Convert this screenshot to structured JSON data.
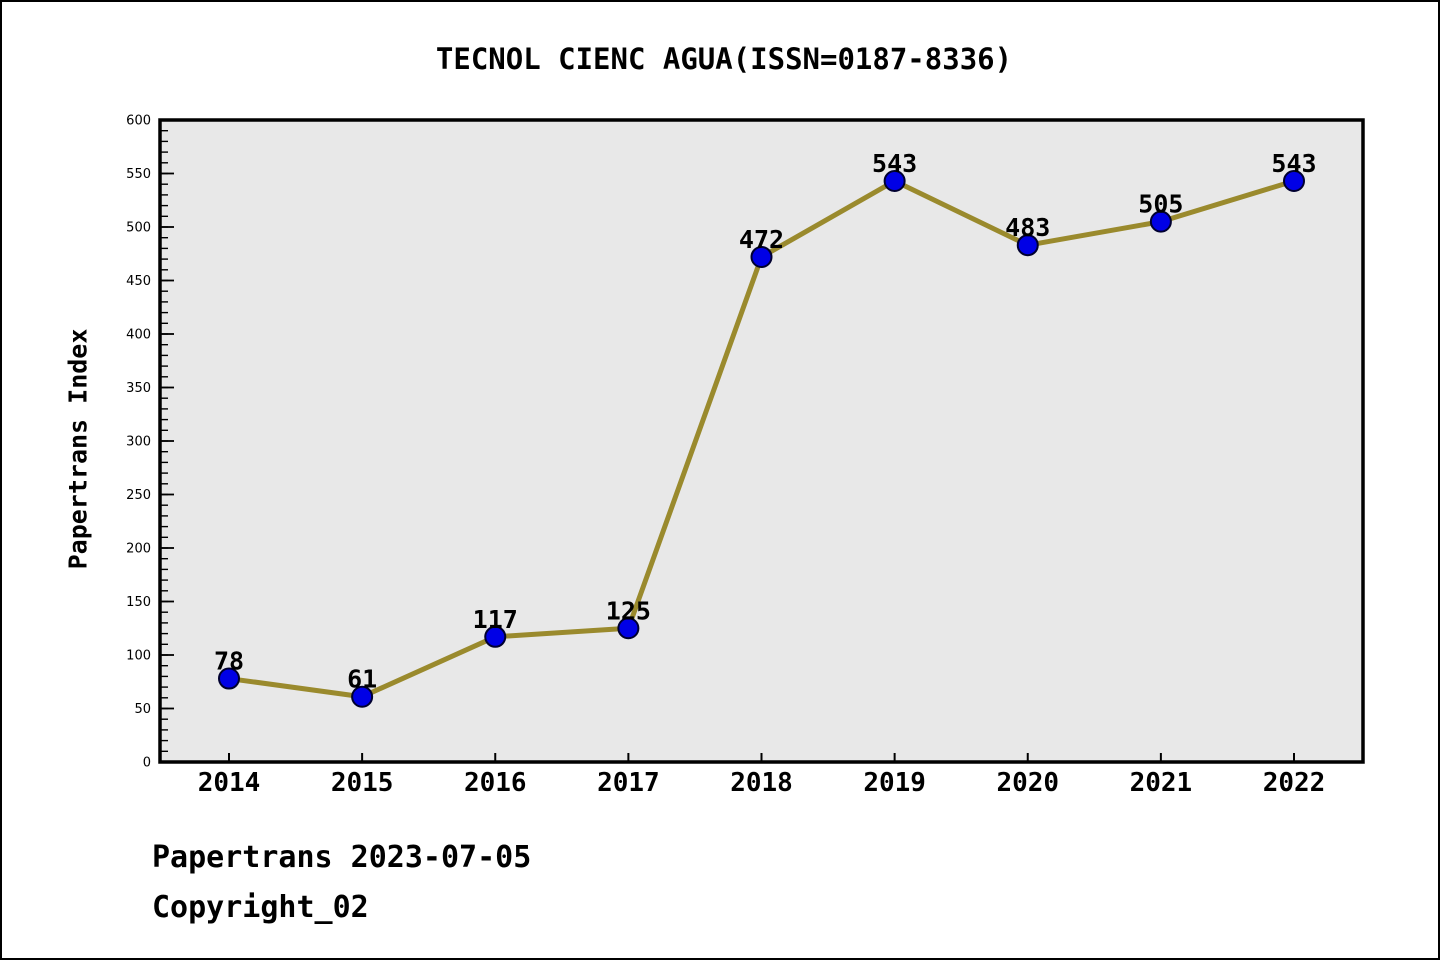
{
  "figure": {
    "footer_line1": "Papertrans 2023-07-05",
    "footer_line2": "Copyright_02"
  },
  "chart_data": {
    "type": "line",
    "title": "TECNOL CIENC AGUA(ISSN=0187-8336)",
    "categories": [
      "2014",
      "2015",
      "2016",
      "2017",
      "2018",
      "2019",
      "2020",
      "2021",
      "2022"
    ],
    "series": [
      {
        "name": "Papertrans Index",
        "values": [
          78,
          61,
          117,
          125,
          472,
          543,
          483,
          505,
          543
        ]
      }
    ],
    "point_labels": [
      "78",
      "61",
      "117",
      "125",
      "472",
      "543",
      "483",
      "505",
      "543"
    ],
    "xlabel": "",
    "ylabel": "Papertrans Index",
    "ylim": [
      0,
      600
    ],
    "yticks": [
      0,
      50,
      100,
      150,
      200,
      250,
      300,
      350,
      400,
      450,
      500,
      550,
      600
    ],
    "ytick_minor_step": 10,
    "grid": false,
    "legend_position": "none",
    "colors": {
      "line": "#9a8a2d",
      "marker_fill": "#0000e6",
      "marker_edge": "#000030",
      "plot_background": "#e8e8e8",
      "figure_background": "#ffffff",
      "axis": "#000000",
      "text": "#000000"
    }
  }
}
